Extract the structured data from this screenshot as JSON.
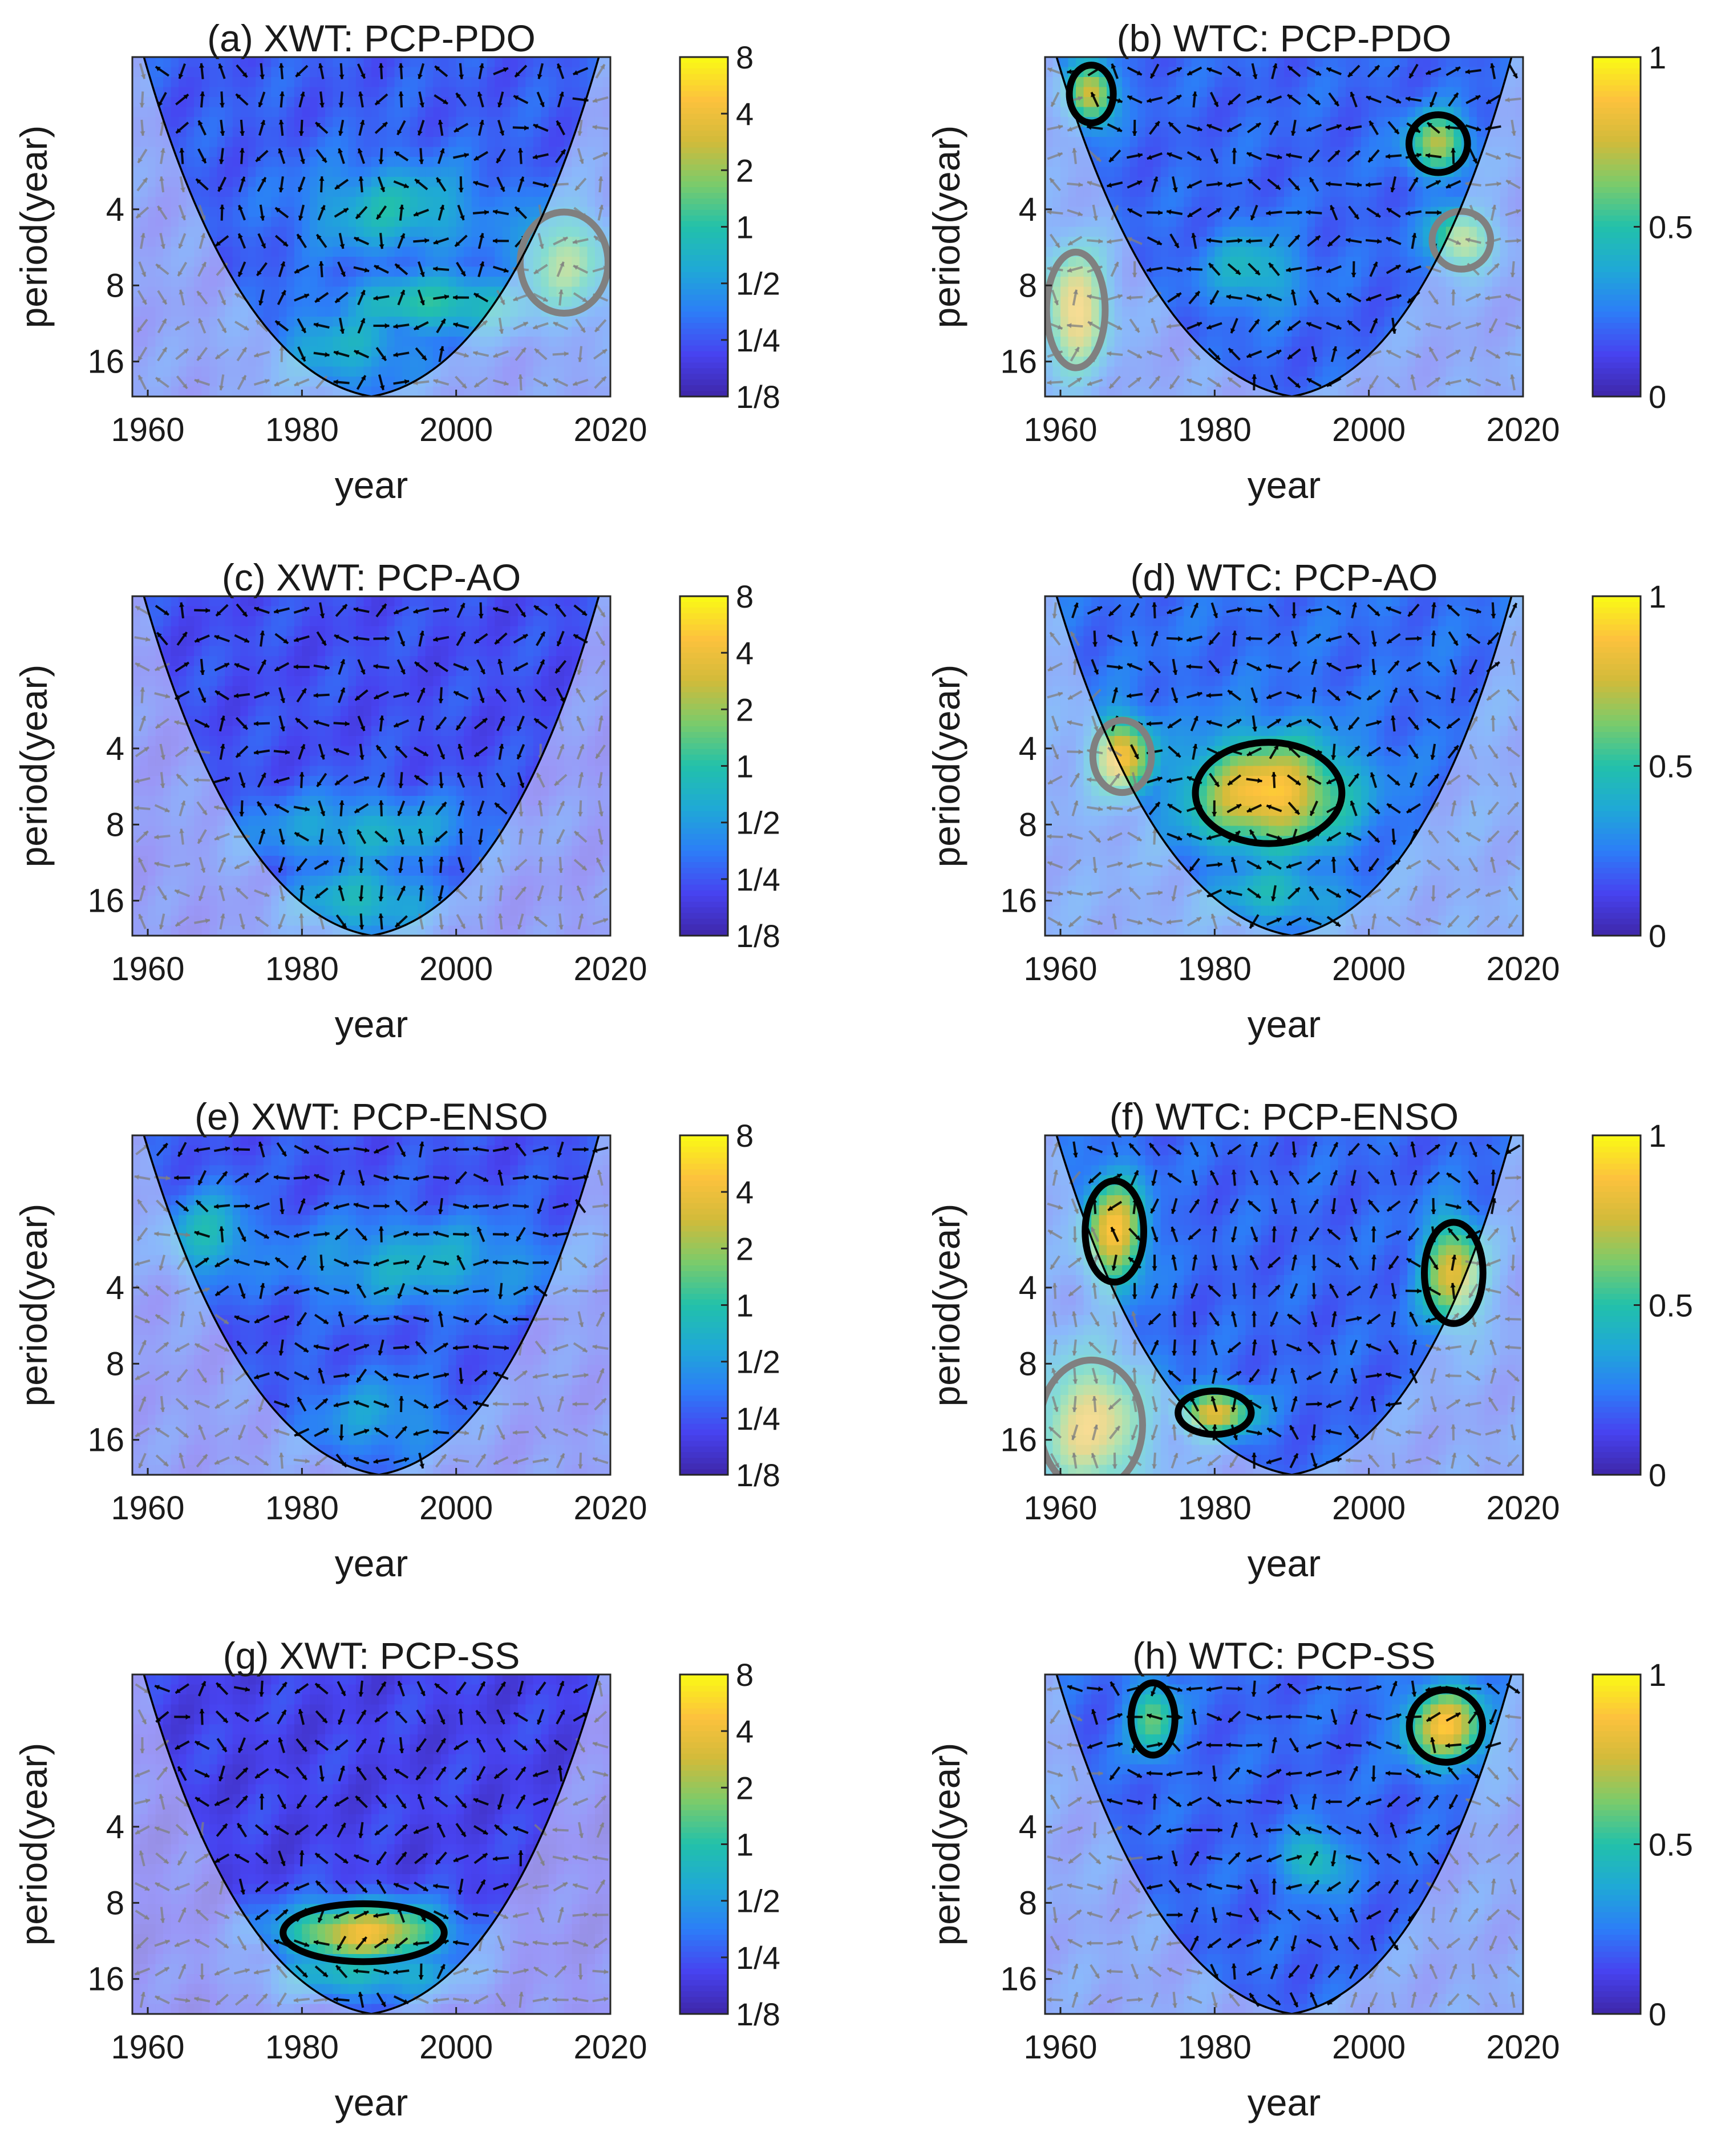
{
  "figure": {
    "description_type": "wavelet cross-spectrum and coherence panels",
    "colors": {
      "parula": [
        "#3e26a8",
        "#4743f0",
        "#2c7ef7",
        "#1fa9d6",
        "#22c1aa",
        "#7bcb6b",
        "#d1bb3a",
        "#fdc23d",
        "#f9fb14"
      ],
      "contour": "#000000",
      "contour_outside_coi": "#808080",
      "arrow": "#000000",
      "arrow_outside_coi": "#808080",
      "coi_shade": "#ffffff"
    }
  },
  "chart_data": [
    {
      "id": "a",
      "type": "heatmap",
      "title": "(a) XWT: PCP-PDO",
      "xlabel": "year",
      "ylabel": "period(year)",
      "xlim": [
        1958,
        2020
      ],
      "ylim": [
        1,
        22
      ],
      "xticks": [
        "1960",
        "1980",
        "2000",
        "2020"
      ],
      "yticks": [
        "4",
        "8",
        "16"
      ],
      "colorbar": {
        "ticks": [
          "8",
          "4",
          "2",
          "1",
          "1/2",
          "1/4",
          "1/8"
        ],
        "range": [
          0.125,
          8
        ],
        "scale": "log2"
      },
      "coi_center_year": 1989,
      "features": [
        {
          "year": 1992,
          "period": 4.0,
          "level": 0.45,
          "spread_year": 12,
          "spread_log2": 0.6
        },
        {
          "year": 1998,
          "period": 9.5,
          "level": 0.5,
          "spread_year": 14,
          "spread_log2": 0.4
        },
        {
          "year": 1986,
          "period": 14,
          "level": 0.4,
          "spread_year": 10,
          "spread_log2": 0.6
        },
        {
          "year": 2014,
          "period": 6.5,
          "level": 0.62,
          "spread_year": 6,
          "spread_log2": 0.7
        }
      ],
      "base_level": 0.18
    },
    {
      "id": "b",
      "type": "heatmap",
      "title": "(b) WTC: PCP-PDO",
      "xlabel": "year",
      "ylabel": "period(year)",
      "xlim": [
        1958,
        2020
      ],
      "ylim": [
        1,
        22
      ],
      "xticks": [
        "1960",
        "1980",
        "2000",
        "2020"
      ],
      "yticks": [
        "4",
        "8",
        "16"
      ],
      "colorbar": {
        "ticks": [
          "1",
          "0.5",
          "0"
        ],
        "range": [
          0,
          1
        ],
        "scale": "linear"
      },
      "coi_center_year": 1990,
      "features": [
        {
          "year": 1962,
          "period": 10,
          "level": 0.85,
          "spread_year": 4,
          "spread_log2": 0.8
        },
        {
          "year": 1964,
          "period": 1.4,
          "level": 0.8,
          "spread_year": 3,
          "spread_log2": 0.4
        },
        {
          "year": 2009,
          "period": 2.2,
          "level": 0.7,
          "spread_year": 4,
          "spread_log2": 0.4
        },
        {
          "year": 2012,
          "period": 5.3,
          "level": 0.7,
          "spread_year": 4,
          "spread_log2": 0.4
        },
        {
          "year": 1985,
          "period": 7.0,
          "level": 0.45,
          "spread_year": 6,
          "spread_log2": 0.5
        }
      ],
      "base_level": 0.2
    },
    {
      "id": "c",
      "type": "heatmap",
      "title": "(c) XWT: PCP-AO",
      "xlabel": "year",
      "ylabel": "period(year)",
      "xlim": [
        1958,
        2020
      ],
      "ylim": [
        1,
        22
      ],
      "xticks": [
        "1960",
        "1980",
        "2000",
        "2020"
      ],
      "yticks": [
        "4",
        "8",
        "16"
      ],
      "colorbar": {
        "ticks": [
          "8",
          "4",
          "2",
          "1",
          "1/2",
          "1/4",
          "1/8"
        ],
        "range": [
          0.125,
          8
        ],
        "scale": "log2"
      },
      "coi_center_year": 1989,
      "features": [
        {
          "year": 1988,
          "period": 8.5,
          "level": 0.4,
          "spread_year": 16,
          "spread_log2": 0.5
        },
        {
          "year": 1988,
          "period": 16,
          "level": 0.45,
          "spread_year": 10,
          "spread_log2": 0.5
        }
      ],
      "base_level": 0.15
    },
    {
      "id": "d",
      "type": "heatmap",
      "title": "(d) WTC: PCP-AO",
      "xlabel": "year",
      "ylabel": "period(year)",
      "xlim": [
        1958,
        2020
      ],
      "ylim": [
        1,
        22
      ],
      "xticks": [
        "1960",
        "1980",
        "2000",
        "2020"
      ],
      "yticks": [
        "4",
        "8",
        "16"
      ],
      "colorbar": {
        "ticks": [
          "1",
          "0.5",
          "0"
        ],
        "range": [
          0,
          1
        ],
        "scale": "linear"
      },
      "coi_center_year": 1990,
      "features": [
        {
          "year": 1987,
          "period": 6.0,
          "level": 0.9,
          "spread_year": 10,
          "spread_log2": 0.7
        },
        {
          "year": 1968,
          "period": 4.3,
          "level": 0.85,
          "spread_year": 4,
          "spread_log2": 0.5
        },
        {
          "year": 1988,
          "period": 15,
          "level": 0.45,
          "spread_year": 8,
          "spread_log2": 0.4
        }
      ],
      "base_level": 0.22
    },
    {
      "id": "e",
      "type": "heatmap",
      "title": "(e) XWT: PCP-ENSO",
      "xlabel": "year",
      "ylabel": "period(year)",
      "xlim": [
        1958,
        2020
      ],
      "ylim": [
        1,
        22
      ],
      "xticks": [
        "1960",
        "1980",
        "2000",
        "2020"
      ],
      "yticks": [
        "4",
        "8",
        "16"
      ],
      "colorbar": {
        "ticks": [
          "8",
          "4",
          "2",
          "1",
          "1/2",
          "1/4",
          "1/8"
        ],
        "range": [
          0.125,
          8
        ],
        "scale": "log2"
      },
      "coi_center_year": 1990,
      "features": [
        {
          "year": 1968,
          "period": 2.5,
          "level": 0.45,
          "spread_year": 6,
          "spread_log2": 0.6
        },
        {
          "year": 1995,
          "period": 3.2,
          "level": 0.4,
          "spread_year": 18,
          "spread_log2": 0.6
        },
        {
          "year": 1990,
          "period": 13,
          "level": 0.35,
          "spread_year": 10,
          "spread_log2": 0.6
        }
      ],
      "base_level": 0.16
    },
    {
      "id": "f",
      "type": "heatmap",
      "title": "(f) WTC: PCP-ENSO",
      "xlabel": "year",
      "ylabel": "period(year)",
      "xlim": [
        1958,
        2020
      ],
      "ylim": [
        1,
        22
      ],
      "xticks": [
        "1960",
        "1980",
        "2000",
        "2020"
      ],
      "yticks": [
        "4",
        "8",
        "16"
      ],
      "colorbar": {
        "ticks": [
          "1",
          "0.5",
          "0"
        ],
        "range": [
          0,
          1
        ],
        "scale": "linear"
      },
      "coi_center_year": 1990,
      "features": [
        {
          "year": 1967,
          "period": 2.4,
          "level": 0.85,
          "spread_year": 4,
          "spread_log2": 0.7
        },
        {
          "year": 2011,
          "period": 3.5,
          "level": 0.8,
          "spread_year": 4,
          "spread_log2": 0.7
        },
        {
          "year": 1980,
          "period": 12.5,
          "level": 0.8,
          "spread_year": 5,
          "spread_log2": 0.3
        },
        {
          "year": 1964,
          "period": 14,
          "level": 0.8,
          "spread_year": 7,
          "spread_log2": 0.9
        }
      ],
      "base_level": 0.2
    },
    {
      "id": "g",
      "type": "heatmap",
      "title": "(g) XWT: PCP-SS",
      "xlabel": "year",
      "ylabel": "period(year)",
      "xlim": [
        1958,
        2020
      ],
      "ylim": [
        1,
        22
      ],
      "xticks": [
        "1960",
        "1980",
        "2000",
        "2020"
      ],
      "yticks": [
        "4",
        "8",
        "16"
      ],
      "colorbar": {
        "ticks": [
          "8",
          "4",
          "2",
          "1",
          "1/2",
          "1/4",
          "1/8"
        ],
        "range": [
          0.125,
          8
        ],
        "scale": "log2"
      },
      "coi_center_year": 1989,
      "features": [
        {
          "year": 1988,
          "period": 10.5,
          "level": 0.82,
          "spread_year": 11,
          "spread_log2": 0.4
        },
        {
          "year": 1988,
          "period": 15,
          "level": 0.45,
          "spread_year": 14,
          "spread_log2": 0.4
        }
      ],
      "base_level": 0.12
    },
    {
      "id": "h",
      "type": "heatmap",
      "title": "(h) WTC: PCP-SS",
      "xlabel": "year",
      "ylabel": "period(year)",
      "xlim": [
        1958,
        2020
      ],
      "ylim": [
        1,
        22
      ],
      "xticks": [
        "1960",
        "1980",
        "2000",
        "2020"
      ],
      "yticks": [
        "4",
        "8",
        "16"
      ],
      "colorbar": {
        "ticks": [
          "1",
          "0.5",
          "0"
        ],
        "range": [
          0,
          1
        ],
        "scale": "linear"
      },
      "coi_center_year": 1990,
      "features": [
        {
          "year": 2010,
          "period": 1.6,
          "level": 0.85,
          "spread_year": 5,
          "spread_log2": 0.5
        },
        {
          "year": 1972,
          "period": 1.5,
          "level": 0.6,
          "spread_year": 3,
          "spread_log2": 0.5
        },
        {
          "year": 1993,
          "period": 5.5,
          "level": 0.5,
          "spread_year": 4,
          "spread_log2": 0.4
        }
      ],
      "base_level": 0.2
    }
  ]
}
